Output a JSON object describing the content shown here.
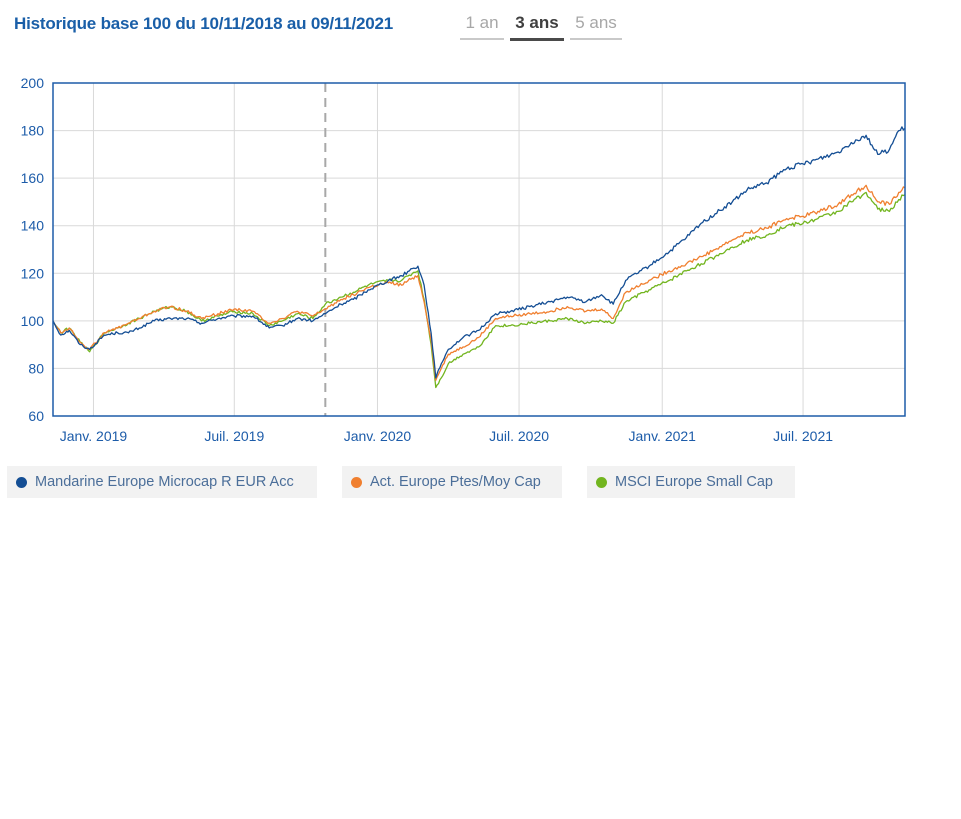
{
  "title": "Historique base 100 du 10/11/2018 au 09/11/2021",
  "tabs": [
    {
      "label": "1 an",
      "active": false
    },
    {
      "label": "3 ans",
      "active": true
    },
    {
      "label": "5 ans",
      "active": false
    }
  ],
  "colors": {
    "mandarine": "#144e94",
    "act": "#f07f2f",
    "msci": "#72b51f",
    "axis": "#1d5ca9",
    "grid": "#d9d9d9"
  },
  "chart_data": {
    "type": "line",
    "y_range": [
      60,
      200
    ],
    "y_ticks": [
      60,
      80,
      100,
      120,
      140,
      160,
      180,
      200
    ],
    "x_range": [
      "2018-11-10",
      "2021-11-09"
    ],
    "x_ticks": [
      {
        "date": "2019-01-01",
        "label": "Janv. 2019"
      },
      {
        "date": "2019-07-01",
        "label": "Juil. 2019"
      },
      {
        "date": "2020-01-01",
        "label": "Janv. 2020"
      },
      {
        "date": "2020-07-01",
        "label": "Juil. 2020"
      },
      {
        "date": "2021-01-01",
        "label": "Janv. 2021"
      },
      {
        "date": "2021-07-01",
        "label": "Juil. 2021"
      }
    ],
    "marker_date": "2019-10-26",
    "grid": true,
    "legend_position": "bottom",
    "series": [
      {
        "name": "Mandarine Europe Microcap R EUR Acc",
        "color": "#144e94",
        "points": [
          [
            "2018-11-10",
            100
          ],
          [
            "2018-11-20",
            94
          ],
          [
            "2018-12-01",
            96
          ],
          [
            "2018-12-15",
            90
          ],
          [
            "2018-12-27",
            88
          ],
          [
            "2019-01-15",
            94
          ],
          [
            "2019-02-01",
            95
          ],
          [
            "2019-02-15",
            95
          ],
          [
            "2019-03-01",
            97
          ],
          [
            "2019-03-20",
            100
          ],
          [
            "2019-04-10",
            101
          ],
          [
            "2019-05-01",
            101
          ],
          [
            "2019-05-20",
            99
          ],
          [
            "2019-06-10",
            101
          ],
          [
            "2019-07-01",
            102
          ],
          [
            "2019-07-25",
            102
          ],
          [
            "2019-08-15",
            97
          ],
          [
            "2019-09-01",
            98
          ],
          [
            "2019-09-20",
            101
          ],
          [
            "2019-10-10",
            100
          ],
          [
            "2019-10-26",
            103
          ],
          [
            "2019-11-15",
            107
          ],
          [
            "2019-12-01",
            109
          ],
          [
            "2019-12-20",
            113
          ],
          [
            "2020-01-15",
            117
          ],
          [
            "2020-02-01",
            119
          ],
          [
            "2020-02-15",
            122
          ],
          [
            "2020-02-22",
            123
          ],
          [
            "2020-03-01",
            115
          ],
          [
            "2020-03-10",
            95
          ],
          [
            "2020-03-16",
            76
          ],
          [
            "2020-03-23",
            82
          ],
          [
            "2020-04-01",
            88
          ],
          [
            "2020-04-20",
            93
          ],
          [
            "2020-05-10",
            96
          ],
          [
            "2020-06-01",
            103
          ],
          [
            "2020-06-20",
            104
          ],
          [
            "2020-07-15",
            106
          ],
          [
            "2020-08-10",
            108
          ],
          [
            "2020-09-01",
            110
          ],
          [
            "2020-09-25",
            108
          ],
          [
            "2020-10-15",
            111
          ],
          [
            "2020-10-30",
            107
          ],
          [
            "2020-11-15",
            117
          ],
          [
            "2020-12-15",
            123
          ],
          [
            "2021-01-10",
            129
          ],
          [
            "2021-02-01",
            135
          ],
          [
            "2021-02-20",
            141
          ],
          [
            "2021-03-10",
            145
          ],
          [
            "2021-04-01",
            150
          ],
          [
            "2021-04-20",
            155
          ],
          [
            "2021-05-15",
            158
          ],
          [
            "2021-06-10",
            164
          ],
          [
            "2021-07-01",
            166
          ],
          [
            "2021-07-20",
            168
          ],
          [
            "2021-08-15",
            171
          ],
          [
            "2021-09-01",
            175
          ],
          [
            "2021-09-20",
            178
          ],
          [
            "2021-10-05",
            170
          ],
          [
            "2021-10-20",
            172
          ],
          [
            "2021-11-01",
            180
          ],
          [
            "2021-11-09",
            181
          ]
        ]
      },
      {
        "name": "Act. Europe Ptes/Moy Cap",
        "color": "#f07f2f",
        "points": [
          [
            "2018-11-10",
            100
          ],
          [
            "2018-11-20",
            95
          ],
          [
            "2018-12-01",
            97
          ],
          [
            "2018-12-15",
            91
          ],
          [
            "2018-12-27",
            88
          ],
          [
            "2019-01-15",
            95
          ],
          [
            "2019-02-01",
            97
          ],
          [
            "2019-02-15",
            99
          ],
          [
            "2019-03-01",
            101
          ],
          [
            "2019-03-20",
            104
          ],
          [
            "2019-04-10",
            106
          ],
          [
            "2019-05-01",
            104
          ],
          [
            "2019-05-20",
            101
          ],
          [
            "2019-06-10",
            103
          ],
          [
            "2019-07-01",
            105
          ],
          [
            "2019-07-25",
            104
          ],
          [
            "2019-08-15",
            99
          ],
          [
            "2019-09-01",
            101
          ],
          [
            "2019-09-20",
            104
          ],
          [
            "2019-10-10",
            102
          ],
          [
            "2019-10-26",
            105
          ],
          [
            "2019-11-15",
            109
          ],
          [
            "2019-12-01",
            111
          ],
          [
            "2019-12-20",
            114
          ],
          [
            "2020-01-15",
            116
          ],
          [
            "2020-02-01",
            115
          ],
          [
            "2020-02-15",
            118
          ],
          [
            "2020-02-22",
            119
          ],
          [
            "2020-03-01",
            108
          ],
          [
            "2020-03-10",
            92
          ],
          [
            "2020-03-16",
            75
          ],
          [
            "2020-03-23",
            80
          ],
          [
            "2020-04-01",
            86
          ],
          [
            "2020-04-20",
            89
          ],
          [
            "2020-05-10",
            93
          ],
          [
            "2020-06-01",
            101
          ],
          [
            "2020-06-20",
            102
          ],
          [
            "2020-07-15",
            103
          ],
          [
            "2020-08-10",
            104
          ],
          [
            "2020-09-01",
            106
          ],
          [
            "2020-09-25",
            104
          ],
          [
            "2020-10-15",
            105
          ],
          [
            "2020-10-30",
            101
          ],
          [
            "2020-11-15",
            112
          ],
          [
            "2020-12-15",
            117
          ],
          [
            "2021-01-10",
            121
          ],
          [
            "2021-02-01",
            124
          ],
          [
            "2021-02-20",
            127
          ],
          [
            "2021-03-10",
            130
          ],
          [
            "2021-04-01",
            134
          ],
          [
            "2021-04-20",
            137
          ],
          [
            "2021-05-15",
            139
          ],
          [
            "2021-06-10",
            143
          ],
          [
            "2021-07-01",
            144
          ],
          [
            "2021-07-20",
            146
          ],
          [
            "2021-08-15",
            149
          ],
          [
            "2021-09-01",
            153
          ],
          [
            "2021-09-20",
            157
          ],
          [
            "2021-10-05",
            150
          ],
          [
            "2021-10-20",
            149
          ],
          [
            "2021-11-01",
            154
          ],
          [
            "2021-11-09",
            156
          ]
        ]
      },
      {
        "name": "MSCI Europe Small Cap",
        "color": "#72b51f",
        "points": [
          [
            "2018-11-10",
            100
          ],
          [
            "2018-11-20",
            95
          ],
          [
            "2018-12-01",
            97
          ],
          [
            "2018-12-15",
            91
          ],
          [
            "2018-12-27",
            87
          ],
          [
            "2019-01-15",
            95
          ],
          [
            "2019-02-01",
            97
          ],
          [
            "2019-02-15",
            99
          ],
          [
            "2019-03-01",
            101
          ],
          [
            "2019-03-20",
            104
          ],
          [
            "2019-04-10",
            106
          ],
          [
            "2019-05-01",
            104
          ],
          [
            "2019-05-20",
            100
          ],
          [
            "2019-06-10",
            102
          ],
          [
            "2019-07-01",
            104
          ],
          [
            "2019-07-25",
            103
          ],
          [
            "2019-08-15",
            98
          ],
          [
            "2019-09-01",
            100
          ],
          [
            "2019-09-20",
            103
          ],
          [
            "2019-10-10",
            101
          ],
          [
            "2019-10-26",
            107
          ],
          [
            "2019-11-15",
            110
          ],
          [
            "2019-12-01",
            112
          ],
          [
            "2019-12-20",
            115
          ],
          [
            "2020-01-15",
            117
          ],
          [
            "2020-02-01",
            117
          ],
          [
            "2020-02-15",
            120
          ],
          [
            "2020-02-22",
            121
          ],
          [
            "2020-03-01",
            109
          ],
          [
            "2020-03-10",
            90
          ],
          [
            "2020-03-16",
            72
          ],
          [
            "2020-03-23",
            76
          ],
          [
            "2020-04-01",
            82
          ],
          [
            "2020-04-20",
            86
          ],
          [
            "2020-05-10",
            89
          ],
          [
            "2020-06-01",
            98
          ],
          [
            "2020-06-20",
            98
          ],
          [
            "2020-07-15",
            99
          ],
          [
            "2020-08-10",
            100
          ],
          [
            "2020-09-01",
            101
          ],
          [
            "2020-09-25",
            99
          ],
          [
            "2020-10-15",
            100
          ],
          [
            "2020-10-30",
            99
          ],
          [
            "2020-11-15",
            108
          ],
          [
            "2020-12-15",
            113
          ],
          [
            "2021-01-10",
            117
          ],
          [
            "2021-02-01",
            121
          ],
          [
            "2021-02-20",
            124
          ],
          [
            "2021-03-10",
            127
          ],
          [
            "2021-04-01",
            131
          ],
          [
            "2021-04-20",
            134
          ],
          [
            "2021-05-15",
            136
          ],
          [
            "2021-06-10",
            140
          ],
          [
            "2021-07-01",
            141
          ],
          [
            "2021-07-20",
            143
          ],
          [
            "2021-08-15",
            146
          ],
          [
            "2021-09-01",
            150
          ],
          [
            "2021-09-20",
            154
          ],
          [
            "2021-10-05",
            147
          ],
          [
            "2021-10-20",
            146
          ],
          [
            "2021-11-01",
            151
          ],
          [
            "2021-11-09",
            153
          ]
        ]
      }
    ]
  }
}
